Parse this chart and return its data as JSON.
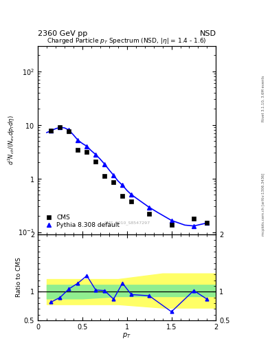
{
  "title_top_left": "2360 GeV pp",
  "title_top_right": "NSD",
  "main_title": "Charged Particle p$_T$ Spectrum (NSD, |$\\eta$| = 1.4 - 1.6)",
  "watermark": "CMS_2010_S8547297",
  "right_label_top": "Rivet 3.1.10, 3.6M events",
  "right_label_bottom": "mcplots.cern.ch [arXiv:1306.3436]",
  "cms_pt": [
    0.15,
    0.25,
    0.35,
    0.45,
    0.55,
    0.65,
    0.75,
    0.85,
    0.95,
    1.05,
    1.25,
    1.5,
    1.75,
    1.9
  ],
  "cms_y": [
    7.8,
    9.0,
    7.5,
    3.4,
    3.1,
    2.05,
    1.12,
    0.85,
    0.47,
    0.37,
    0.22,
    0.135,
    0.18,
    0.148
  ],
  "pythia_pt": [
    0.1,
    0.15,
    0.2,
    0.25,
    0.3,
    0.35,
    0.4,
    0.45,
    0.5,
    0.55,
    0.6,
    0.65,
    0.7,
    0.75,
    0.8,
    0.85,
    0.9,
    0.95,
    1.0,
    1.05,
    1.15,
    1.25,
    1.35,
    1.5,
    1.65,
    1.75,
    1.9
  ],
  "pythia_y": [
    7.2,
    7.8,
    8.5,
    9.0,
    8.8,
    8.0,
    6.5,
    5.2,
    4.5,
    4.0,
    3.3,
    2.8,
    2.3,
    1.85,
    1.45,
    1.15,
    0.9,
    0.75,
    0.6,
    0.5,
    0.38,
    0.29,
    0.23,
    0.165,
    0.135,
    0.13,
    0.148
  ],
  "ratio_pt": [
    0.15,
    0.25,
    0.35,
    0.45,
    0.55,
    0.65,
    0.75,
    0.85,
    0.95,
    1.05,
    1.25,
    1.5,
    1.75,
    1.9
  ],
  "ratio_y": [
    0.82,
    0.9,
    1.05,
    1.15,
    1.28,
    1.03,
    1.02,
    0.87,
    1.15,
    0.95,
    0.93,
    0.65,
    1.02,
    0.87
  ],
  "green_band_x": [
    0.1,
    0.5,
    0.9,
    1.4,
    2.0
  ],
  "green_band_lo": [
    0.88,
    0.88,
    0.92,
    0.92,
    0.92
  ],
  "green_band_hi": [
    1.12,
    1.12,
    1.12,
    1.12,
    1.12
  ],
  "yellow_band_x": [
    0.1,
    0.5,
    0.9,
    1.4,
    2.0
  ],
  "yellow_band_lo": [
    0.78,
    0.78,
    0.78,
    0.72,
    0.72
  ],
  "yellow_band_hi": [
    1.22,
    1.22,
    1.22,
    1.32,
    1.32
  ],
  "xlim": [
    0.0,
    2.0
  ],
  "ylim_main_lo": 0.09,
  "ylim_main_hi": 300,
  "ylim_ratio_lo": 0.5,
  "ylim_ratio_hi": 2.0,
  "cms_color": "black",
  "pythia_color": "blue",
  "green_color": "#90EE90",
  "yellow_color": "#FFFF66",
  "background_color": "white"
}
